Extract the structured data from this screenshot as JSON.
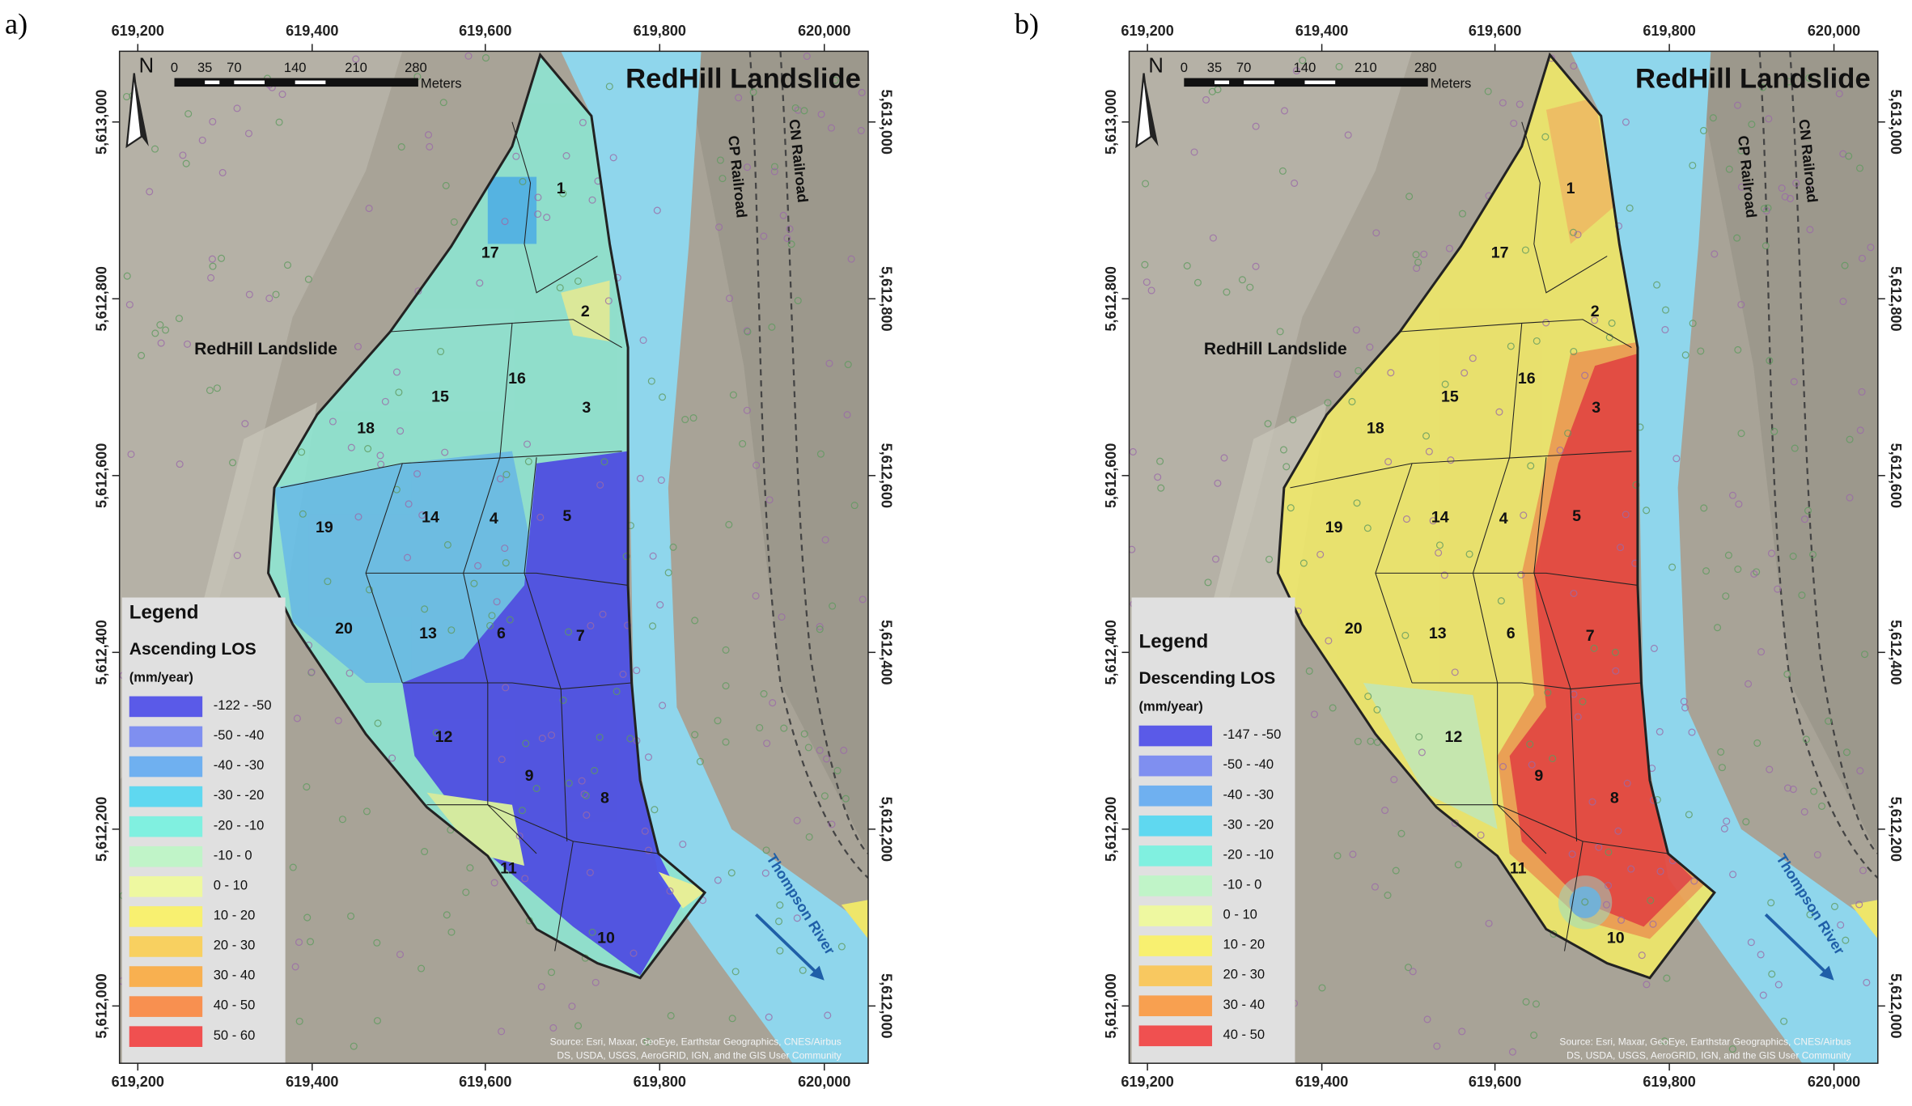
{
  "panels": [
    {
      "label": "a)",
      "title": "RedHill Landslide",
      "place_label": "RedHill Landslide",
      "north": "N",
      "scale_labels": [
        "0",
        "35",
        "70",
        "140",
        "210",
        "280"
      ],
      "scale_unit": "Meters",
      "x_ticks": [
        "619,200",
        "619,400",
        "619,600",
        "619,800",
        "620,000"
      ],
      "y_ticks": [
        "5,613,000",
        "5,612,800",
        "5,612,600",
        "5,612,400",
        "5,612,200",
        "5,612,000"
      ],
      "railroads": [
        "CP Railroad",
        "CN Railroad"
      ],
      "river": "Thompson River",
      "source": [
        "Source: Esri, Maxar, GeoEye, Earthstar Geographics, CNES/Airbus",
        "DS, USDA, USGS, AeroGRID, IGN, and the GIS User Community"
      ],
      "zones": [
        "1",
        "17",
        "2",
        "16",
        "15",
        "3",
        "18",
        "19",
        "14",
        "4",
        "5",
        "20",
        "13",
        "6",
        "7",
        "12",
        "9",
        "8",
        "11",
        "10"
      ],
      "legend": {
        "heading": "Legend",
        "title": "Ascending LOS",
        "units": "(mm/year)",
        "items": [
          {
            "label": "-122 - -50",
            "color": "#5a5ae8"
          },
          {
            "label": "-50 - -40",
            "color": "#7f8ff0"
          },
          {
            "label": "-40 - -30",
            "color": "#6fb0f0"
          },
          {
            "label": "-30 - -20",
            "color": "#5fd8f0"
          },
          {
            "label": "-20 - -10",
            "color": "#80f0e0"
          },
          {
            "label": "-10 - 0",
            "color": "#c0f4c8"
          },
          {
            "label": "0 - 10",
            "color": "#eef8a0"
          },
          {
            "label": "10 - 20",
            "color": "#f8f070"
          },
          {
            "label": "20 - 30",
            "color": "#f8d060"
          },
          {
            "label": "30 - 40",
            "color": "#f8b050"
          },
          {
            "label": "40 - 50",
            "color": "#f89050"
          },
          {
            "label": "50 - 60",
            "color": "#f05050"
          }
        ]
      }
    },
    {
      "label": "b)",
      "title": "RedHill Landslide",
      "place_label": "RedHill Landslide",
      "north": "N",
      "scale_labels": [
        "0",
        "35",
        "70",
        "140",
        "210",
        "280"
      ],
      "scale_unit": "Meters",
      "x_ticks": [
        "619,200",
        "619,400",
        "619,600",
        "619,800",
        "620,000"
      ],
      "y_ticks": [
        "5,613,000",
        "5,612,800",
        "5,612,600",
        "5,612,400",
        "5,612,200",
        "5,612,000"
      ],
      "railroads": [
        "CP Railroad",
        "CN Railroad"
      ],
      "river": "Thompson River",
      "source": [
        "Source: Esri, Maxar, GeoEye, Earthstar Geographics, CNES/Airbus",
        "DS, USDA, USGS, AeroGRID, IGN, and the GIS User Community"
      ],
      "zones": [
        "1",
        "17",
        "2",
        "16",
        "15",
        "3",
        "18",
        "19",
        "14",
        "4",
        "5",
        "20",
        "13",
        "6",
        "7",
        "12",
        "9",
        "8",
        "11",
        "10"
      ],
      "legend": {
        "heading": "Legend",
        "title": "Descending LOS",
        "units": "(mm/year)",
        "items": [
          {
            "label": "-147 - -50",
            "color": "#5a5ae8"
          },
          {
            "label": "-50 - -40",
            "color": "#7f8ff0"
          },
          {
            "label": "-40 - -30",
            "color": "#6fb0f0"
          },
          {
            "label": "-30 - -20",
            "color": "#5fd8f0"
          },
          {
            "label": "-20 - -10",
            "color": "#80f0e0"
          },
          {
            "label": "-10 - 0",
            "color": "#c0f4c8"
          },
          {
            "label": "0 - 10",
            "color": "#eef8a0"
          },
          {
            "label": "10 - 20",
            "color": "#f8f070"
          },
          {
            "label": "20 - 30",
            "color": "#f8c860"
          },
          {
            "label": "30 - 40",
            "color": "#f8a050"
          },
          {
            "label": "40 - 50",
            "color": "#f05050"
          }
        ]
      }
    }
  ]
}
